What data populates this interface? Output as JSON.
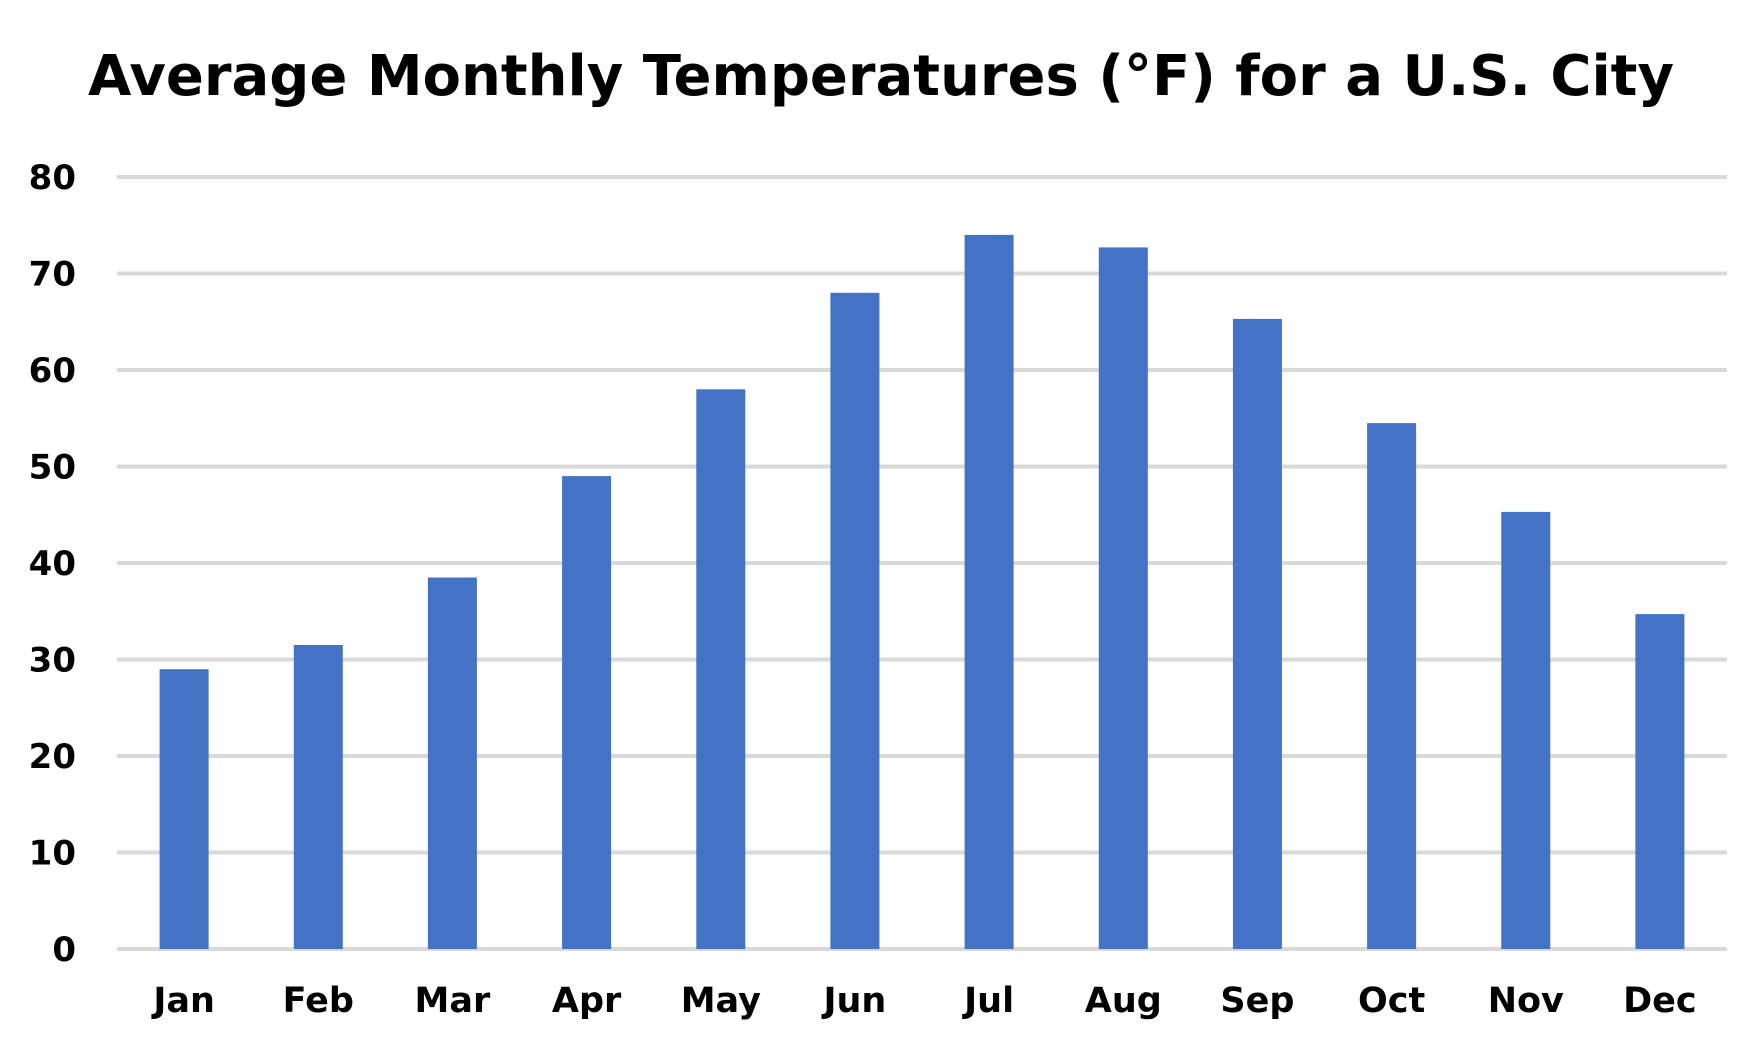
{
  "chart_data": {
    "type": "bar",
    "title": "Average Monthly Temperatures (°F) for a U.S. City",
    "categories": [
      "Jan",
      "Feb",
      "Mar",
      "Apr",
      "May",
      "Jun",
      "Jul",
      "Aug",
      "Sep",
      "Oct",
      "Nov",
      "Dec"
    ],
    "series": [
      {
        "values": [
          29,
          31.5,
          38.5,
          49,
          58,
          68,
          74,
          72.7,
          65.3,
          54.5,
          45.3,
          34.7
        ],
        "color": "#4472C4"
      }
    ],
    "ylim": [
      0,
      80
    ],
    "yticks": [
      0,
      10,
      20,
      30,
      40,
      50,
      60,
      70,
      80
    ],
    "grid": true,
    "gridColor": "#D9D9D9",
    "legend": "none"
  }
}
